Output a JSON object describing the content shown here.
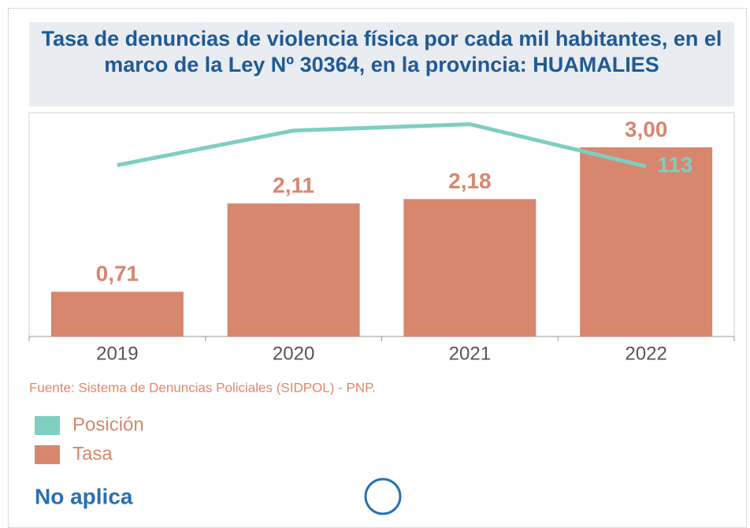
{
  "chart_data": {
    "type": "bar",
    "title": "Tasa de denuncias de violencia física por cada mil habitantes, en el marco de la Ley Nº 30364, en la provincia: HUAMALIES",
    "categories": [
      "2019",
      "2020",
      "2021",
      "2022"
    ],
    "ylim": [
      0,
      3.55
    ],
    "y2lim": [
      -20,
      155
    ],
    "series": [
      {
        "name": "Posición",
        "type": "line",
        "axis": "y2",
        "color": "#7ecfc0",
        "values": [
          114,
          141,
          146,
          113
        ],
        "value_labels": [
          null,
          null,
          null,
          "113"
        ]
      },
      {
        "name": "Tasa",
        "type": "bar",
        "color": "#d8866e",
        "values": [
          0.71,
          2.11,
          2.18,
          3.0
        ],
        "value_labels": [
          "0,71",
          "2,11",
          "2,18",
          "3,00"
        ]
      }
    ],
    "source": "Fuente: Sistema de Denuncias Policiales (SIDPOL) - PNP.",
    "status": "No aplica",
    "legend": "bottom-left"
  }
}
